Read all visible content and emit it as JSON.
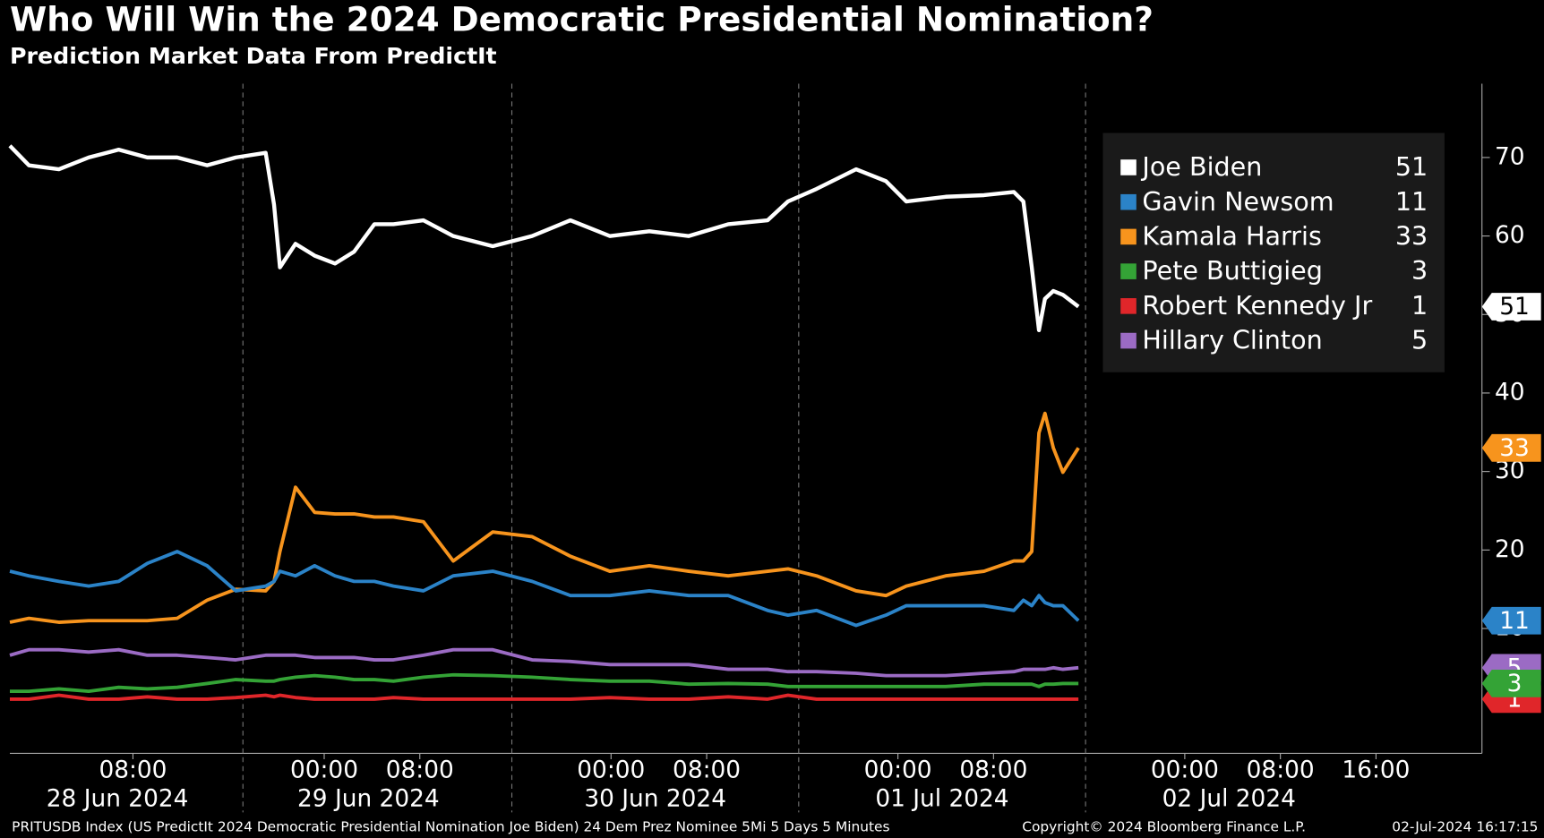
{
  "chart_data": {
    "type": "line",
    "title": "Who Will Win the 2024 Democratic Presidential Nomination?",
    "subtitle": "Prediction Market Data From PredictIt",
    "source": "PRITUSDB Index (US PredictIt 2024 Democratic Presidential Nomination Joe Biden) 24 Dem Prez Nominee 5Mi 5 Days 5 Minutes",
    "copyright": "Copyright© 2024 Bloomberg Finance L.P.",
    "timestamp": "02-Jul-2024 16:17:15",
    "x": [
      -2.3,
      -0.7,
      1.8,
      4.3,
      6.8,
      9.2,
      11.7,
      14.2,
      16.6,
      19.1,
      19.8,
      20.3,
      21.6,
      23.2,
      24.9,
      26.5,
      28.2,
      29.8,
      32.3,
      34.8,
      38.1,
      41.4,
      44.6,
      47.9,
      51.2,
      54.5,
      57.8,
      61.1,
      62.8,
      65.2,
      68.5,
      71.0,
      72.7,
      76.0,
      79.2,
      81.7,
      82.5,
      83.2,
      83.8,
      84.3,
      85.0,
      85.8,
      87.1
    ],
    "xlim": [
      -2.3,
      120.7
    ],
    "xticks": [
      {
        "value": 8,
        "label": "08:00"
      },
      {
        "value": 24,
        "label": "00:00"
      },
      {
        "value": 32,
        "label": "08:00"
      },
      {
        "value": 48,
        "label": "00:00"
      },
      {
        "value": 56,
        "label": "08:00"
      },
      {
        "value": 72,
        "label": "00:00"
      },
      {
        "value": 80,
        "label": "08:00"
      },
      {
        "value": 96,
        "label": "00:00"
      },
      {
        "value": 104,
        "label": "08:00"
      },
      {
        "value": 112,
        "label": "16:00"
      }
    ],
    "xdates": [
      {
        "value": 6.7,
        "label": "28 Jun 2024"
      },
      {
        "value": 27.7,
        "label": "29 Jun 2024"
      },
      {
        "value": 51.7,
        "label": "30 Jun 2024"
      },
      {
        "value": 75.7,
        "label": "01 Jul 2024"
      },
      {
        "value": 99.7,
        "label": "02 Jul 2024"
      }
    ],
    "ylim": [
      -5.9,
      79.4
    ],
    "yticks": [
      10,
      20,
      30,
      40,
      50,
      60,
      70
    ],
    "series": [
      {
        "name": "Joe Biden",
        "color": "#ffffff",
        "values": [
          71.5,
          69,
          68.5,
          70,
          71,
          70,
          70,
          69,
          70,
          70.6,
          64,
          56,
          59,
          57.5,
          56.5,
          58,
          61.5,
          61.5,
          62,
          60,
          58.7,
          60,
          62,
          60,
          60.6,
          60,
          61.5,
          62,
          64.4,
          66,
          68.5,
          67,
          64.4,
          65,
          65.2,
          65.6,
          64.4,
          56,
          48,
          52,
          53,
          52.5,
          51
        ]
      },
      {
        "name": "Gavin Newsom",
        "color": "#2b83c8",
        "values": [
          17.3,
          16.7,
          16,
          15.4,
          16,
          18.3,
          19.8,
          18,
          14.8,
          15.4,
          16,
          17.3,
          16.7,
          18,
          16.7,
          16,
          16,
          15.4,
          14.8,
          16.7,
          17.3,
          16,
          14.2,
          14.2,
          14.8,
          14.2,
          14.2,
          12.3,
          11.7,
          12.3,
          10.4,
          11.7,
          12.9,
          12.9,
          12.9,
          12.3,
          13.6,
          12.9,
          14.2,
          13.3,
          12.9,
          12.9,
          11
        ]
      },
      {
        "name": "Kamala Harris",
        "color": "#f7941d",
        "values": [
          10.8,
          11.3,
          10.8,
          11,
          11,
          11,
          11.3,
          13.6,
          15,
          14.8,
          16,
          19.8,
          28,
          24.8,
          24.6,
          24.6,
          24.2,
          24.2,
          23.6,
          18.6,
          22.3,
          21.7,
          19.2,
          17.3,
          18,
          17.3,
          16.7,
          17.3,
          17.6,
          16.7,
          14.8,
          14.2,
          15.4,
          16.7,
          17.3,
          18.6,
          18.6,
          19.8,
          34.9,
          37.4,
          33,
          29.9,
          33
        ]
      },
      {
        "name": "Pete Buttigieg",
        "color": "#34a336",
        "values": [
          2,
          2,
          2.3,
          2,
          2.5,
          2.3,
          2.5,
          3,
          3.5,
          3.3,
          3.3,
          3.5,
          3.8,
          4,
          3.8,
          3.5,
          3.5,
          3.3,
          3.8,
          4.1,
          4,
          3.8,
          3.5,
          3.3,
          3.3,
          2.9,
          3,
          2.9,
          2.6,
          2.6,
          2.6,
          2.6,
          2.6,
          2.6,
          2.9,
          2.9,
          2.9,
          2.9,
          2.6,
          2.9,
          2.9,
          3,
          3
        ]
      },
      {
        "name": "Robert Kennedy Jr",
        "color": "#e0262a",
        "values": [
          1,
          1,
          1.5,
          1,
          1,
          1.3,
          1,
          1,
          1.2,
          1.5,
          1.3,
          1.5,
          1.2,
          1,
          1,
          1,
          1,
          1.2,
          1,
          1,
          1,
          1,
          1,
          1.2,
          1,
          1,
          1.3,
          1,
          1.5,
          1,
          1,
          1,
          1,
          1,
          1,
          1,
          1,
          1,
          1,
          1,
          1,
          1,
          1
        ]
      },
      {
        "name": "Hillary Clinton",
        "color": "#9b6bc4",
        "values": [
          6.6,
          7.3,
          7.3,
          7,
          7.3,
          6.6,
          6.6,
          6.3,
          6,
          6.6,
          6.6,
          6.6,
          6.6,
          6.3,
          6.3,
          6.3,
          6,
          6,
          6.6,
          7.3,
          7.3,
          6,
          5.8,
          5.4,
          5.4,
          5.4,
          4.8,
          4.8,
          4.5,
          4.5,
          4.3,
          4,
          4,
          4,
          4.3,
          4.5,
          4.8,
          4.8,
          4.8,
          4.8,
          5,
          4.8,
          5
        ]
      }
    ]
  }
}
